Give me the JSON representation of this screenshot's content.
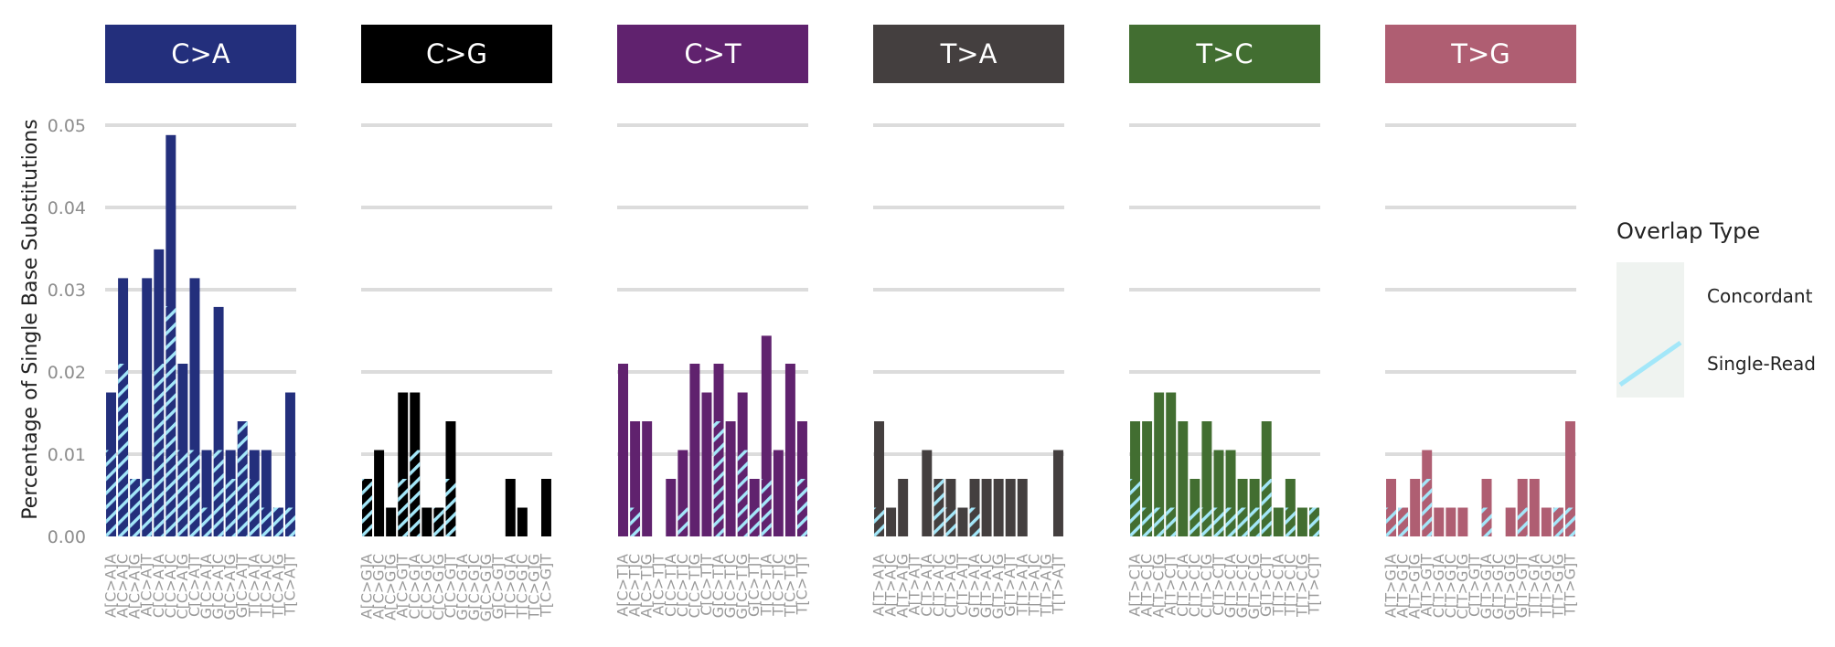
{
  "chart_data": {
    "type": "bar",
    "ylabel": "Percentage of Single Base Substitutions",
    "ylim": [
      0,
      0.055
    ],
    "yticks": [
      "0.00",
      "0.01",
      "0.02",
      "0.03",
      "0.04",
      "0.05"
    ],
    "grid": "horizontal",
    "legend": {
      "title": "Overlap Type",
      "position": "right",
      "entries": [
        {
          "name": "Concordant",
          "style": "solid"
        },
        {
          "name": "Single-Read",
          "style": "hatched",
          "color": "#a3e7f9"
        }
      ]
    },
    "panels": [
      {
        "label": "C>A",
        "color": "#232f7c",
        "categories": [
          "A[C>A]A",
          "A[C>A]C",
          "A[C>A]G",
          "A[C>A]T",
          "C[C>A]A",
          "C[C>A]C",
          "C[C>A]G",
          "C[C>A]T",
          "G[C>A]A",
          "G[C>A]C",
          "G[C>A]G",
          "G[C>A]T",
          "T[C>A]A",
          "T[C>A]C",
          "T[C>A]G",
          "T[C>A]T"
        ],
        "concordant": [
          0.0175,
          0.0314,
          0.007,
          0.0314,
          0.0349,
          0.0488,
          0.021,
          0.0314,
          0.0105,
          0.0279,
          0.0105,
          0.014,
          0.0105,
          0.0105,
          0.0035,
          0.0175
        ],
        "single_read": [
          0.0105,
          0.021,
          0.007,
          0.007,
          0.021,
          0.028,
          0.0105,
          0.0105,
          0.0035,
          0.0105,
          0.007,
          0.014,
          0.007,
          0.0035,
          0.0035,
          0.0035
        ]
      },
      {
        "label": "C>G",
        "color": "#000000",
        "categories": [
          "A[C>G]A",
          "A[C>G]C",
          "A[C>G]G",
          "A[C>G]T",
          "C[C>G]A",
          "C[C>G]C",
          "C[C>G]G",
          "C[C>G]T",
          "G[C>G]A",
          "G[C>G]C",
          "G[C>G]G",
          "G[C>G]T",
          "T[C>G]A",
          "T[C>G]C",
          "T[C>G]G",
          "T[C>G]T"
        ],
        "concordant": [
          0.007,
          0.0105,
          0.0035,
          0.0175,
          0.0175,
          0.0035,
          0.0035,
          0.014,
          0,
          0,
          0,
          0,
          0.007,
          0.0035,
          0,
          0.007
        ],
        "single_read": [
          0.007,
          0,
          0,
          0.007,
          0.0105,
          0,
          0.0035,
          0.007,
          0,
          0,
          0,
          0,
          0,
          0,
          0,
          0
        ]
      },
      {
        "label": "C>T",
        "color": "#60226e",
        "categories": [
          "A[C>T]A",
          "A[C>T]C",
          "A[C>T]G",
          "A[C>T]T",
          "C[C>T]A",
          "C[C>T]C",
          "C[C>T]G",
          "C[C>T]T",
          "G[C>T]A",
          "G[C>T]C",
          "G[C>T]G",
          "G[C>T]T",
          "T[C>T]A",
          "T[C>T]C",
          "T[C>T]G",
          "T[C>T]T"
        ],
        "concordant": [
          0.021,
          0.014,
          0.014,
          0,
          0.007,
          0.0105,
          0.021,
          0.0175,
          0.021,
          0.014,
          0.0175,
          0.007,
          0.0244,
          0.0105,
          0.021,
          0.014
        ],
        "single_read": [
          0,
          0.0035,
          0,
          0,
          0,
          0.0035,
          0,
          0,
          0.014,
          0,
          0.0105,
          0.0035,
          0.007,
          0,
          0,
          0.007
        ]
      },
      {
        "label": "T>A",
        "color": "#443f3f",
        "categories": [
          "A[T>A]A",
          "A[T>A]C",
          "A[T>A]G",
          "A[T>A]T",
          "C[T>A]A",
          "C[T>A]C",
          "C[T>A]G",
          "C[T>A]T",
          "G[T>A]A",
          "G[T>A]C",
          "G[T>A]G",
          "G[T>A]T",
          "T[T>A]A",
          "T[T>A]C",
          "T[T>A]G",
          "T[T>A]T"
        ],
        "concordant": [
          0.014,
          0.0035,
          0.007,
          0,
          0.0105,
          0.007,
          0.007,
          0.0035,
          0.007,
          0.007,
          0.007,
          0.007,
          0.007,
          0,
          0,
          0.0105
        ],
        "single_read": [
          0.0035,
          0,
          0,
          0,
          0,
          0.007,
          0.0035,
          0,
          0.0035,
          0,
          0,
          0,
          0,
          0,
          0,
          0
        ]
      },
      {
        "label": "T>C",
        "color": "#426e31",
        "categories": [
          "A[T>C]A",
          "A[T>C]C",
          "A[T>C]G",
          "A[T>C]T",
          "C[T>C]A",
          "C[T>C]C",
          "C[T>C]G",
          "C[T>C]T",
          "G[T>C]A",
          "G[T>C]C",
          "G[T>C]G",
          "G[T>C]T",
          "T[T>C]A",
          "T[T>C]C",
          "T[T>C]G",
          "T[T>C]T"
        ],
        "concordant": [
          0.014,
          0.014,
          0.0175,
          0.0175,
          0.014,
          0.007,
          0.014,
          0.0105,
          0.0105,
          0.007,
          0.007,
          0.014,
          0.0035,
          0.007,
          0.0035,
          0.0035
        ],
        "single_read": [
          0.007,
          0.0035,
          0.0035,
          0.0035,
          0,
          0.0035,
          0.0035,
          0.0035,
          0.0035,
          0.0035,
          0.0035,
          0.007,
          0,
          0.0035,
          0,
          0.0035
        ]
      },
      {
        "label": "T>G",
        "color": "#af5e72",
        "categories": [
          "A[T>G]A",
          "A[T>G]C",
          "A[T>G]G",
          "A[T>G]T",
          "C[T>G]A",
          "C[T>G]C",
          "C[T>G]G",
          "C[T>G]T",
          "G[T>G]A",
          "G[T>G]C",
          "G[T>G]G",
          "G[T>G]T",
          "T[T>G]A",
          "T[T>G]C",
          "T[T>G]G",
          "T[T>G]T"
        ],
        "concordant": [
          0.007,
          0.0035,
          0.007,
          0.0105,
          0.0035,
          0.0035,
          0.0035,
          0,
          0.007,
          0,
          0.0035,
          0.007,
          0.007,
          0.0035,
          0.0035,
          0.014
        ],
        "single_read": [
          0.0035,
          0.0035,
          0,
          0.007,
          0,
          0,
          0,
          0,
          0.0035,
          0,
          0,
          0.0035,
          0,
          0,
          0.0035,
          0.0035
        ]
      }
    ]
  }
}
